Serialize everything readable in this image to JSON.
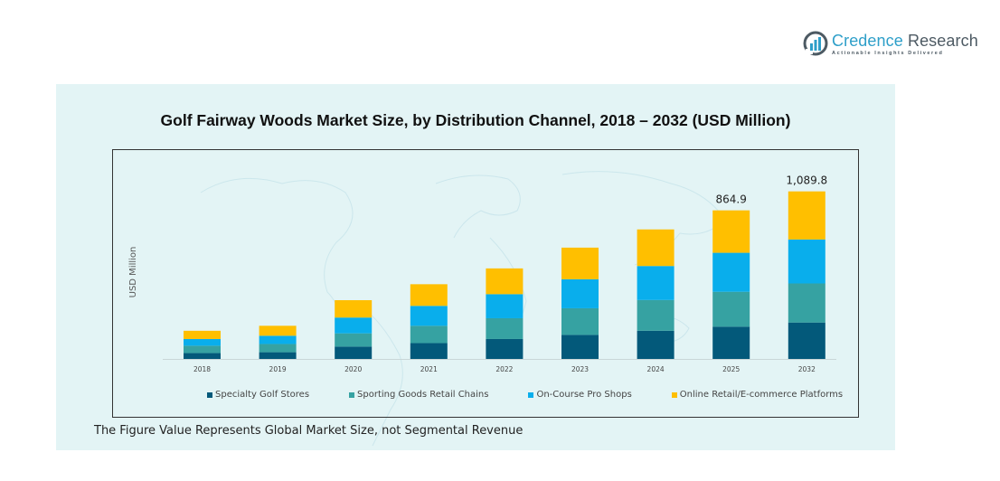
{
  "brand": {
    "name_part1": "Credence",
    "name_part2": "Research",
    "tagline": "Actionable Insights Delivered",
    "icon": "bar-chart-logo-icon"
  },
  "footnote": "The Figure Value Represents Global Market Size, not Segmental Revenue",
  "chart_data": {
    "type": "bar",
    "stacked": true,
    "title": "Golf Fairway Woods Market Size, by Distribution Channel, 2018 – 2032 (USD Million)",
    "xlabel": "",
    "ylabel": "USD Million",
    "categories": [
      "2018",
      "2019",
      "2020",
      "2021",
      "2022",
      "2023",
      "2024",
      "2025",
      "2032"
    ],
    "series": [
      {
        "name": "Specialty Golf Stores",
        "color": "#03597a",
        "values": [
          34,
          39,
          72,
          92,
          116,
          140,
          164,
          188,
          237
        ]
      },
      {
        "name": "Sporting Goods Retail Chains",
        "color": "#36a2a2",
        "values": [
          43,
          48,
          77,
          101,
          121,
          155,
          179,
          203,
          254
        ]
      },
      {
        "name": "On-Course Pro Shops",
        "color": "#09aeec",
        "values": [
          39,
          48,
          92,
          116,
          140,
          169,
          198,
          227,
          286
        ]
      },
      {
        "name": "Online Retail/E-commerce Platforms",
        "color": "#ffbf00",
        "values": [
          48,
          58,
          101,
          126,
          150,
          184,
          213,
          246.9,
          312.8
        ]
      }
    ],
    "data_labels": [
      {
        "category": "2025",
        "text": "864.9"
      },
      {
        "category": "2032",
        "text": "1,089.8"
      }
    ],
    "totals": {
      "2025": 864.9,
      "2032": 1089.8
    },
    "ylim": [
      0,
      1200
    ],
    "grid": false,
    "legend_position": "bottom"
  }
}
